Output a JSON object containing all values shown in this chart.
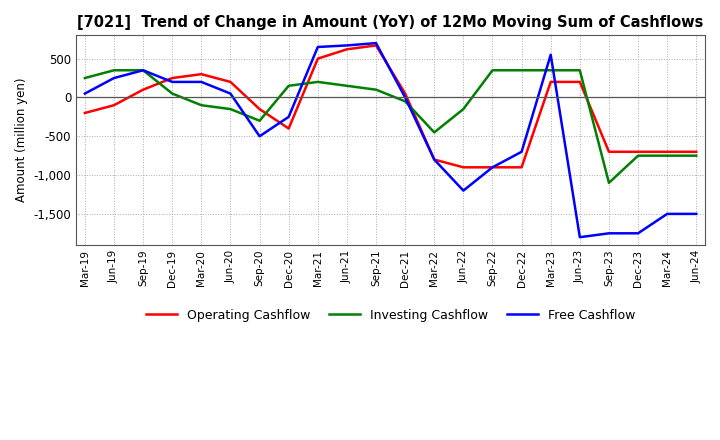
{
  "title": "[7021]  Trend of Change in Amount (YoY) of 12Mo Moving Sum of Cashflows",
  "ylabel": "Amount (million yen)",
  "x_labels": [
    "Mar-19",
    "Jun-19",
    "Sep-19",
    "Dec-19",
    "Mar-20",
    "Jun-20",
    "Sep-20",
    "Dec-20",
    "Mar-21",
    "Jun-21",
    "Sep-21",
    "Dec-21",
    "Mar-22",
    "Jun-22",
    "Sep-22",
    "Dec-22",
    "Mar-23",
    "Jun-23",
    "Sep-23",
    "Dec-23",
    "Mar-24",
    "Jun-24"
  ],
  "operating_cashflow": [
    -200,
    -100,
    100,
    250,
    300,
    200,
    -150,
    -400,
    500,
    620,
    670,
    50,
    -800,
    -900,
    -900,
    -900,
    200,
    200,
    -700,
    -700,
    -700,
    -700
  ],
  "investing_cashflow": [
    250,
    350,
    350,
    50,
    -100,
    -150,
    -300,
    150,
    200,
    150,
    100,
    -50,
    -450,
    -150,
    350,
    350,
    350,
    350,
    -1100,
    -750,
    -750,
    -750
  ],
  "free_cashflow": [
    50,
    250,
    350,
    200,
    200,
    50,
    -500,
    -250,
    650,
    670,
    700,
    0,
    -800,
    -1200,
    -900,
    -700,
    550,
    -1800,
    -1750,
    -1750,
    -1500,
    -1500
  ],
  "ylim": [
    -1900,
    800
  ],
  "yticks": [
    500,
    0,
    -500,
    -1000,
    -1500
  ],
  "operating_color": "#ff0000",
  "investing_color": "#008000",
  "free_color": "#0000ff",
  "background_color": "#ffffff",
  "grid_color": "#aaaaaa",
  "grid_style": ":"
}
